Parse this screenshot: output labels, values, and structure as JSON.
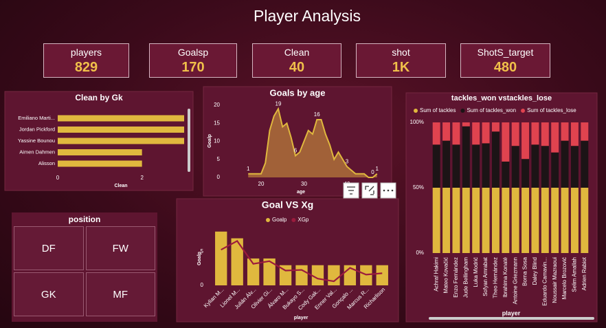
{
  "header": {
    "title": "Player Analysis"
  },
  "cards": [
    {
      "label": "players",
      "value": "829"
    },
    {
      "label": "Goalsp",
      "value": "170"
    },
    {
      "label": "Clean",
      "value": "40"
    },
    {
      "label": "shot",
      "value": "1K"
    },
    {
      "label": "ShotS_target",
      "value": "480"
    }
  ],
  "slicer": {
    "title": "position",
    "items": [
      "DF",
      "FW",
      "GK",
      "MF"
    ]
  },
  "chart_data": [
    {
      "type": "bar",
      "horizontal": true,
      "title": "Clean by Gk",
      "categories": [
        "Emiliano Marti...",
        "Jordan Pickford",
        "Yassine Bounou",
        "Aimen Dahmen",
        "Alisson"
      ],
      "values": [
        3,
        3,
        3,
        2,
        2
      ],
      "color": "#e0b83e",
      "xlim": [
        0,
        3
      ],
      "xticks": [
        0,
        2
      ],
      "x_label": "Clean"
    },
    {
      "type": "area",
      "title": "Goals by age",
      "x": [
        17,
        18,
        19,
        20,
        21,
        22,
        23,
        24,
        25,
        26,
        27,
        28,
        29,
        30,
        31,
        32,
        33,
        34,
        35,
        36,
        37,
        38,
        39,
        40,
        41,
        42,
        43,
        44,
        45,
        46,
        47
      ],
      "values": [
        1,
        1,
        1,
        1,
        4,
        13,
        17,
        19,
        14,
        15,
        11,
        6,
        7,
        10,
        13,
        12,
        16,
        16,
        12,
        9,
        5,
        7,
        5,
        3,
        2,
        1,
        1,
        1,
        0,
        0,
        1
      ],
      "value_labels": [
        "1",
        null,
        null,
        null,
        null,
        null,
        null,
        "19",
        null,
        null,
        null,
        "6",
        null,
        null,
        null,
        null,
        "16",
        null,
        null,
        null,
        null,
        null,
        null,
        "3",
        null,
        null,
        null,
        null,
        null,
        "0",
        "1"
      ],
      "color": "#e0b83e",
      "fill": "#a8693a",
      "xlim": [
        16,
        48
      ],
      "xticks": [
        20,
        30,
        40
      ],
      "ylim": [
        0,
        20
      ],
      "yticks": [
        0,
        5,
        10,
        15,
        20
      ],
      "x_label": "age",
      "y_label": "Goalp"
    },
    {
      "type": "bar",
      "stacked": true,
      "title": "tackles_won vstackles_lose",
      "categories": [
        "Achraf Hakimi",
        "Mateo Kovačić",
        "Enzo Fernández",
        "Jude Bellingham",
        "Luka Modrić",
        "Sofyan Amrabat",
        "Theo Hernández",
        "Ibrahima Konaté",
        "Antoine Griezmann",
        "Borna Sosa",
        "Daley Blind",
        "Eduardo Camavin...",
        "Noussair Mazraoui",
        "Marcelo Brozović",
        "Selim Amallah",
        "Adrien Rabiot"
      ],
      "series": [
        {
          "name": "Sum of tackles",
          "color": "#e0b83e",
          "values": [
            50,
            50,
            50,
            50,
            50,
            50,
            50,
            50,
            50,
            50,
            50,
            50,
            50,
            50,
            50,
            50
          ]
        },
        {
          "name": "Sum of tackles_won",
          "color": "#1c1416",
          "values": [
            33,
            36,
            33,
            47,
            33,
            34,
            43,
            20,
            32,
            22,
            33,
            32,
            27,
            36,
            32,
            36
          ]
        },
        {
          "name": "Sum of tackles_lose",
          "color": "#e0434f",
          "values": [
            17,
            14,
            17,
            3,
            17,
            16,
            7,
            30,
            18,
            28,
            17,
            18,
            23,
            14,
            18,
            14
          ]
        }
      ],
      "ylim": [
        0,
        100
      ],
      "yticks": [
        {
          "value": 0,
          "label": "0%"
        },
        {
          "value": 50,
          "label": "50%"
        },
        {
          "value": 100,
          "label": "100%"
        }
      ],
      "x_label": "player"
    },
    {
      "type": "combo",
      "title": "Goal VS Xg",
      "categories": [
        "Kylian M...",
        "Lionel M...",
        "Julián Álv...",
        "Olivier Gi...",
        "Álvaro M...",
        "Bukayo S...",
        "Cody Gak...",
        "Enner Val...",
        "Gonçalo ...",
        "Marcus R...",
        "Richarlison"
      ],
      "series": [
        {
          "name": "Goalp",
          "color": "#e0b83e",
          "values": [
            8,
            7,
            4,
            4,
            3,
            3,
            3,
            3,
            3,
            3,
            3
          ]
        },
        {
          "name": "XGp",
          "color": "#9b1b3d",
          "type": "line",
          "values": [
            5.3,
            6.6,
            3.2,
            3.6,
            2.2,
            2.3,
            1.0,
            0.6,
            2.6,
            1.6,
            1.8
          ]
        }
      ],
      "ylim": [
        0,
        9
      ],
      "yticks": [
        0,
        5
      ],
      "x_label": "player",
      "y_label": "Goalp"
    }
  ]
}
